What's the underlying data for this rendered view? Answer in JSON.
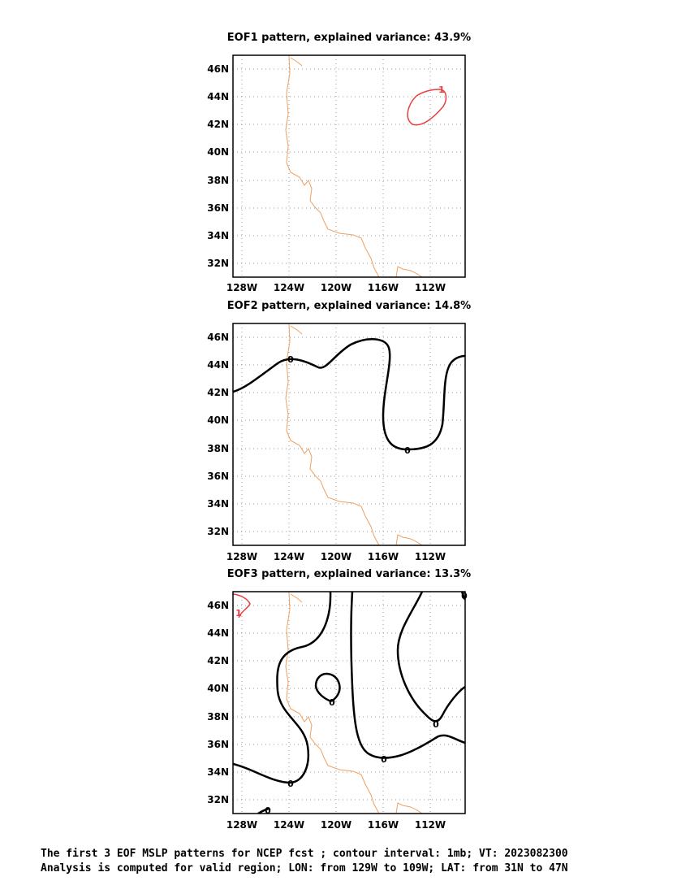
{
  "panels": [
    {
      "title": "EOF1 pattern, explained variance: 43.9%"
    },
    {
      "title": "EOF2 pattern, explained variance: 14.8%"
    },
    {
      "title": "EOF3 pattern, explained variance: 13.3%"
    }
  ],
  "axes": {
    "lon_ticks": [
      "128W",
      "124W",
      "120W",
      "116W",
      "112W"
    ],
    "lat_ticks": [
      "46N",
      "44N",
      "42N",
      "40N",
      "38N",
      "36N",
      "34N",
      "32N"
    ]
  },
  "contour_labels": {
    "eof1": [
      "1"
    ],
    "eof2": [
      "0",
      "0"
    ],
    "eof3": [
      "1",
      "0",
      "0",
      "0",
      "0",
      "0",
      "0"
    ]
  },
  "colors": {
    "coastline": "#f0a060",
    "positive_contour": "#e84040",
    "zero_contour": "#000000",
    "grid": "#999999"
  },
  "caption": {
    "line1": "The first 3 EOF MSLP patterns for NCEP fcst ; contour interval: 1mb; VT: 2023082300",
    "line2": "Analysis is computed for valid region; LON: from 129W to 109W; LAT: from 31N to 47N"
  }
}
